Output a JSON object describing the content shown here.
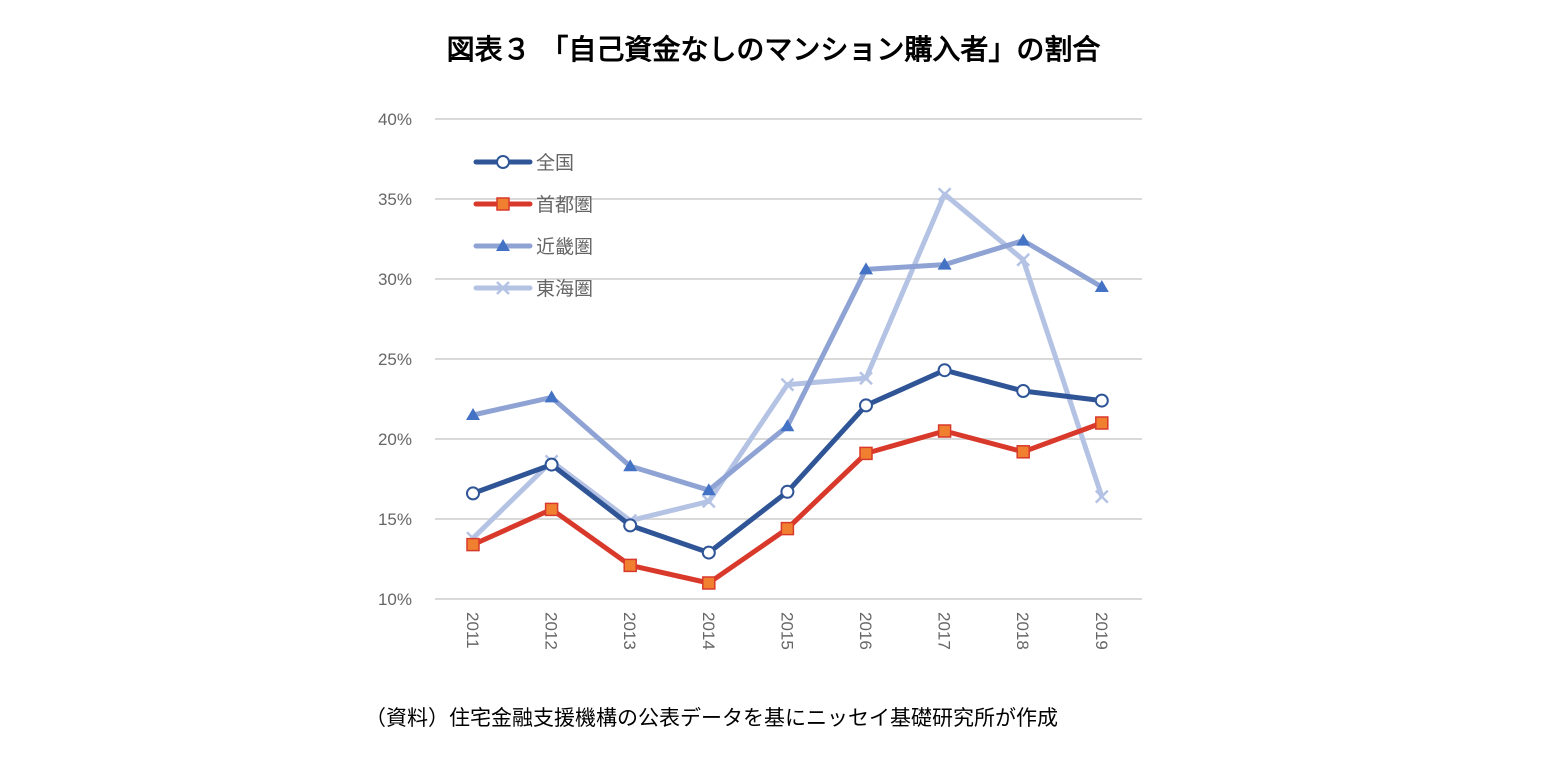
{
  "chart_data": {
    "type": "line",
    "title": "図表３ 「自己資金なしのマンション購入者」の割合",
    "source": "（資料）住宅金融支援機構の公表データを基にニッセイ基礎研究所が作成",
    "categories": [
      "2011",
      "2012",
      "2013",
      "2014",
      "2015",
      "2016",
      "2017",
      "2018",
      "2019"
    ],
    "ylim": [
      10,
      40
    ],
    "yticks": [
      "10%",
      "15%",
      "20%",
      "25%",
      "30%",
      "35%",
      "40%"
    ],
    "ytick_values": [
      10,
      15,
      20,
      25,
      30,
      35,
      40
    ],
    "grid": true,
    "legend_position": "top-left",
    "series": [
      {
        "name": "全国",
        "color": "#2f5597",
        "marker": "circle",
        "values": [
          16.6,
          18.4,
          14.6,
          12.9,
          16.7,
          22.1,
          24.3,
          23.0,
          22.4
        ]
      },
      {
        "name": "首都圏",
        "color": "#d9392b",
        "marker_fill": "#f08030",
        "marker": "square",
        "values": [
          13.4,
          15.6,
          12.1,
          11.0,
          14.4,
          19.1,
          20.5,
          19.2,
          21.0
        ]
      },
      {
        "name": "近畿圏",
        "color": "#8ea3d4",
        "marker_fill": "#4472c4",
        "marker": "triangle",
        "values": [
          21.5,
          22.6,
          18.3,
          16.8,
          20.8,
          30.6,
          30.9,
          32.4,
          29.5
        ]
      },
      {
        "name": "東海圏",
        "color": "#b4c2e4",
        "marker": "x",
        "values": [
          13.8,
          18.6,
          14.9,
          16.1,
          23.4,
          23.8,
          35.3,
          31.2,
          16.4
        ]
      }
    ]
  }
}
